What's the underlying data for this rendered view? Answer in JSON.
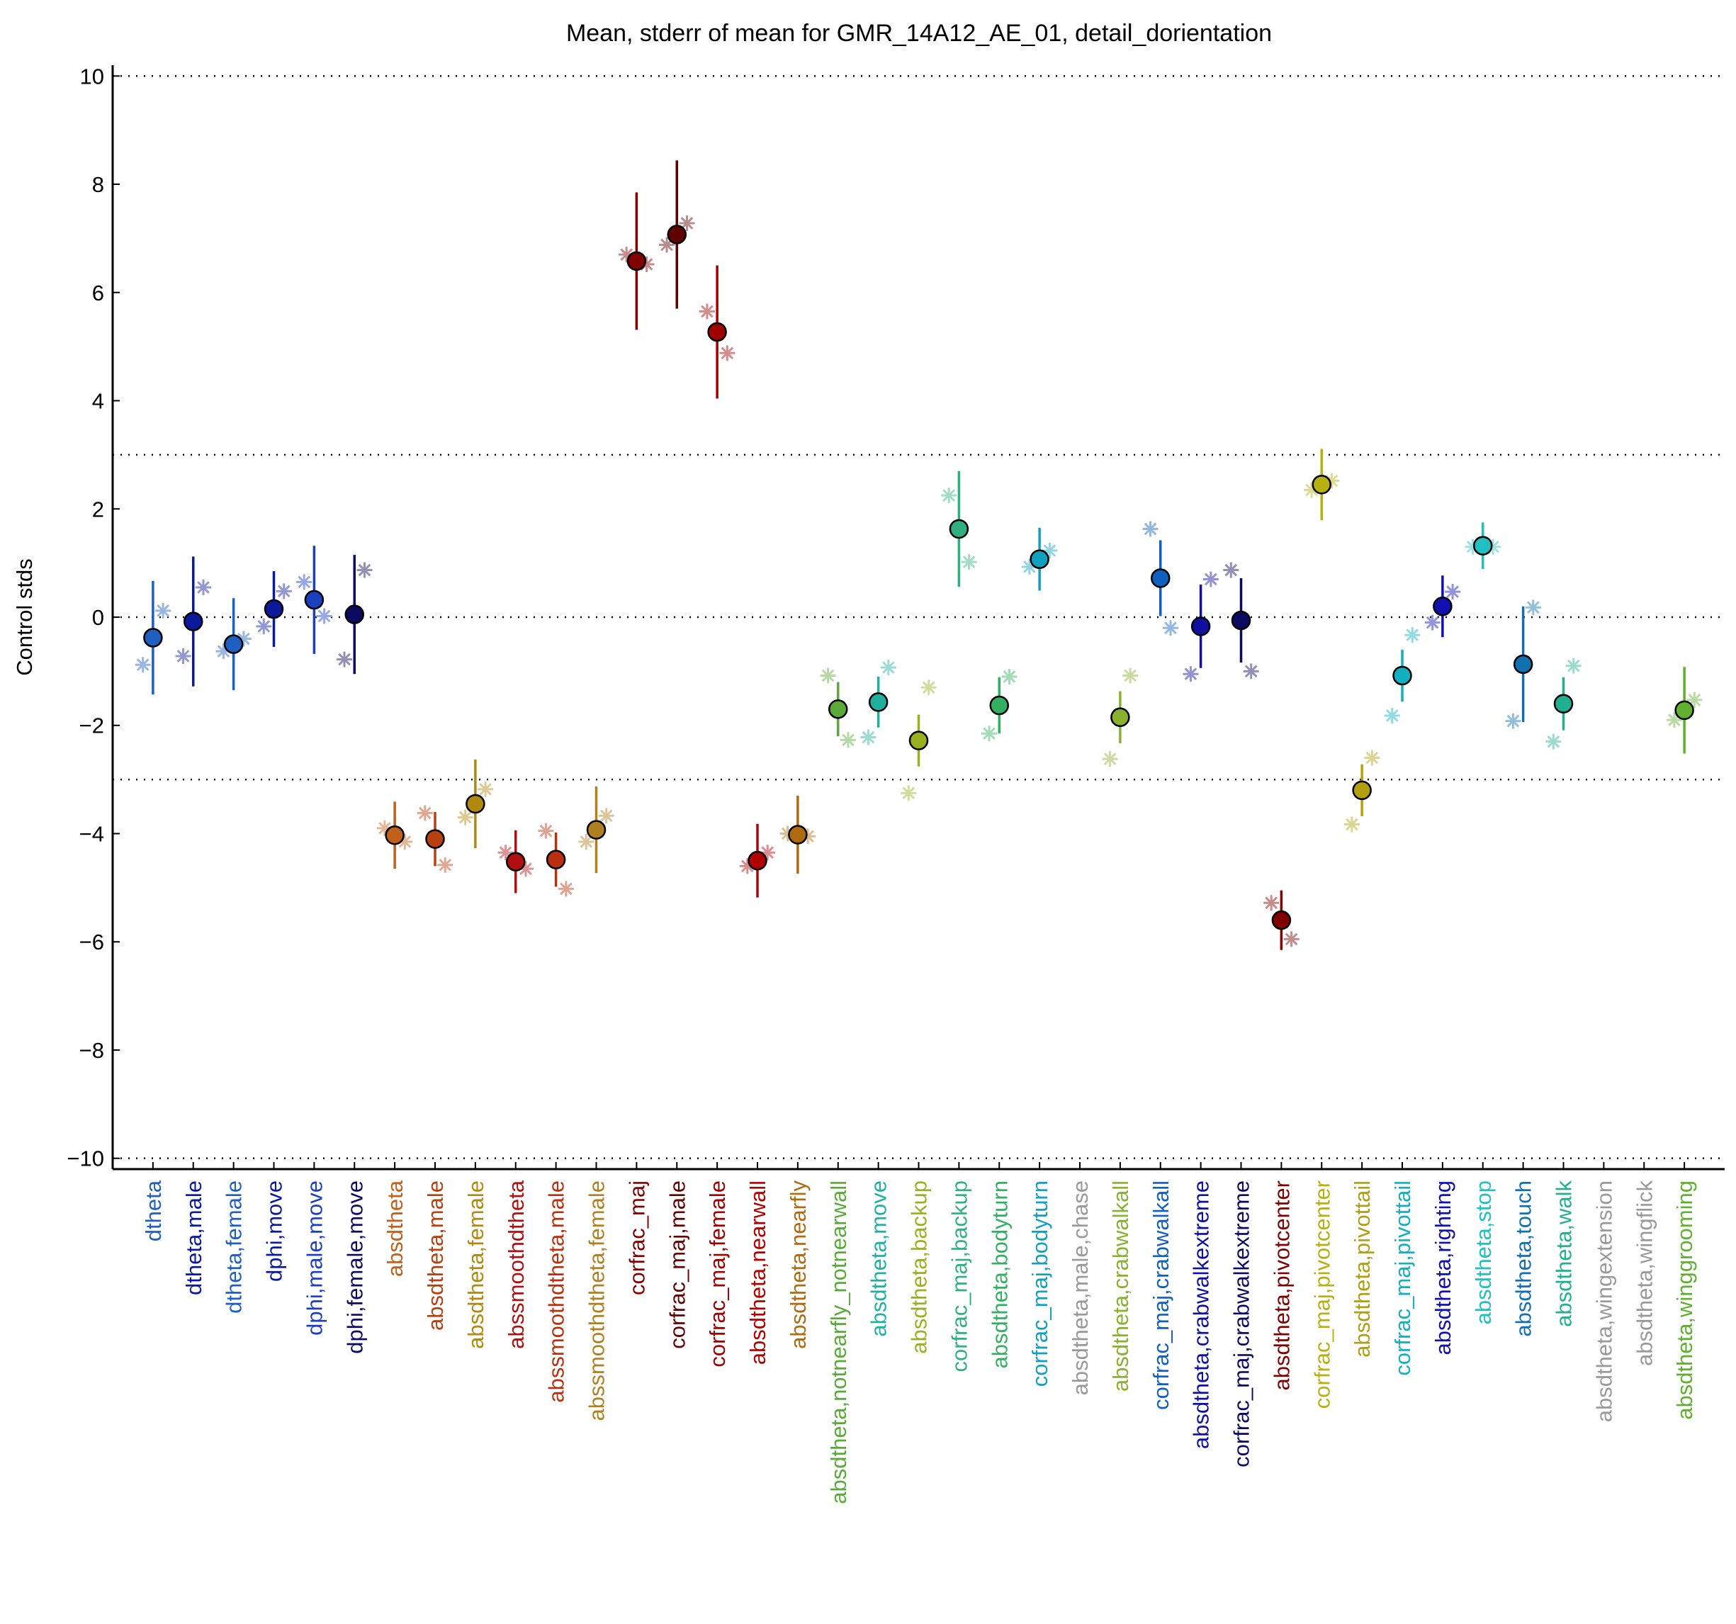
{
  "chart_data": {
    "type": "errorbar",
    "title": "Mean, stderr of mean for GMR_14A12_AE_01, detail_dorientation",
    "y_label": "Control stds",
    "categories": [
      "dtheta",
      "dtheta,male",
      "dtheta,female",
      "dphi,move",
      "dphi,male,move",
      "dphi,female,move",
      "absdtheta",
      "absdtheta,male",
      "absdtheta,female",
      "abssmoothdtheta",
      "abssmoothdtheta,male",
      "abssmoothdtheta,female",
      "corfrac_maj",
      "corfrac_maj,male",
      "corfrac_maj,female",
      "absdtheta,nearwall",
      "absdtheta,nearfly",
      "absdtheta,notnearfly_notnearwall",
      "absdtheta,move",
      "absdtheta,backup",
      "corfrac_maj,backup",
      "absdtheta,bodyturn",
      "corfrac_maj,bodyturn",
      "absdtheta,male,chase",
      "absdtheta,crabwalkall",
      "corfrac_maj,crabwalkall",
      "absdtheta,crabwalkextreme",
      "corfrac_maj,crabwalkextreme",
      "absdtheta,pivotcenter",
      "corfrac_maj,pivotcenter",
      "absdtheta,pivottail",
      "corfrac_maj,pivottail",
      "absdtheta,righting",
      "absdtheta,stop",
      "absdtheta,touch",
      "absdtheta,walk",
      "absdtheta,wingextension",
      "absdtheta,wingflick",
      "absdtheta,winggrooming"
    ],
    "values": [
      -0.38,
      -0.08,
      -0.5,
      0.15,
      0.32,
      0.05,
      -4.03,
      -4.1,
      -3.45,
      -4.52,
      -4.48,
      -3.93,
      6.58,
      7.07,
      5.27,
      -4.5,
      -4.02,
      -1.7,
      -1.57,
      -2.28,
      1.63,
      -1.63,
      1.07,
      null,
      -1.85,
      0.72,
      -0.17,
      -0.06,
      -5.6,
      2.45,
      -3.2,
      -1.08,
      0.2,
      1.32,
      -0.87,
      -1.6,
      null,
      null,
      -1.72
    ],
    "errors": [
      1.05,
      1.2,
      0.85,
      0.7,
      1.0,
      1.1,
      0.62,
      0.5,
      0.82,
      0.58,
      0.5,
      0.8,
      1.27,
      1.37,
      1.23,
      0.68,
      0.72,
      0.5,
      0.47,
      0.48,
      1.07,
      0.52,
      0.58,
      null,
      0.48,
      0.7,
      0.77,
      0.78,
      0.55,
      0.66,
      0.48,
      0.48,
      0.57,
      0.43,
      1.07,
      0.49,
      null,
      null,
      0.8
    ],
    "points": [
      [
        -0.88,
        0.12
      ],
      [
        -0.72,
        0.55
      ],
      [
        -0.63,
        -0.4
      ],
      [
        -0.17,
        0.48
      ],
      [
        0.65,
        0.02
      ],
      [
        -0.78,
        0.87
      ],
      [
        -3.9,
        -4.15
      ],
      [
        -3.62,
        -4.58
      ],
      [
        -3.7,
        -3.18
      ],
      [
        -4.35,
        -4.65
      ],
      [
        -3.95,
        -5.02
      ],
      [
        -4.15,
        -3.67
      ],
      [
        6.7,
        6.52
      ],
      [
        6.88,
        7.28
      ],
      [
        5.65,
        4.88
      ],
      [
        -4.6,
        -4.35
      ],
      [
        -4.0,
        -4.05
      ],
      [
        -1.08,
        -2.27
      ],
      [
        -2.22,
        -0.93
      ],
      [
        -3.25,
        -1.3
      ],
      [
        2.25,
        1.02
      ],
      [
        -2.15,
        -1.1
      ],
      [
        0.93,
        1.23
      ],
      null,
      [
        -2.62,
        -1.08
      ],
      [
        1.63,
        -0.2
      ],
      [
        -1.05,
        0.7
      ],
      [
        0.87,
        -1.0
      ],
      [
        -5.28,
        -5.95
      ],
      [
        2.35,
        2.52
      ],
      [
        -3.83,
        -2.6
      ],
      [
        -1.82,
        -0.33
      ],
      [
        -0.1,
        0.47
      ],
      [
        1.3,
        1.3
      ],
      [
        -1.92,
        0.18
      ],
      [
        -2.3,
        -0.9
      ],
      null,
      null,
      [
        -1.9,
        -1.53
      ]
    ],
    "colors": [
      "#1f5fbf",
      "#0a1a9a",
      "#1f5fbf",
      "#0a1a9a",
      "#1a3fbf",
      "#0a0a60",
      "#c0601a",
      "#b84010",
      "#b08a10",
      "#b01010",
      "#b83010",
      "#b08020",
      "#800000",
      "#600000",
      "#a00000",
      "#b00000",
      "#b06a10",
      "#5aaa3a",
      "#20b0a0",
      "#9ab020",
      "#30b080",
      "#30b060",
      "#10a0c0",
      "#999999",
      "#8ab030",
      "#1060c0",
      "#1010a0",
      "#0a0a60",
      "#800000",
      "#b8b010",
      "#b0a010",
      "#10b0c0",
      "#1010b0",
      "#20c0c0",
      "#1070b0",
      "#20b090",
      "#999999",
      "#999999",
      "#60b030"
    ],
    "ylim": [
      -10.2,
      10.2
    ],
    "yticks": [
      {
        "value": -10,
        "label": "−10"
      },
      {
        "value": -8,
        "label": "−8"
      },
      {
        "value": -6,
        "label": "−6"
      },
      {
        "value": -4,
        "label": "−4"
      },
      {
        "value": -2,
        "label": "−2"
      },
      0,
      2,
      4,
      6,
      8,
      10
    ],
    "reference_lines": [
      -10,
      -3,
      0,
      3,
      10
    ]
  }
}
